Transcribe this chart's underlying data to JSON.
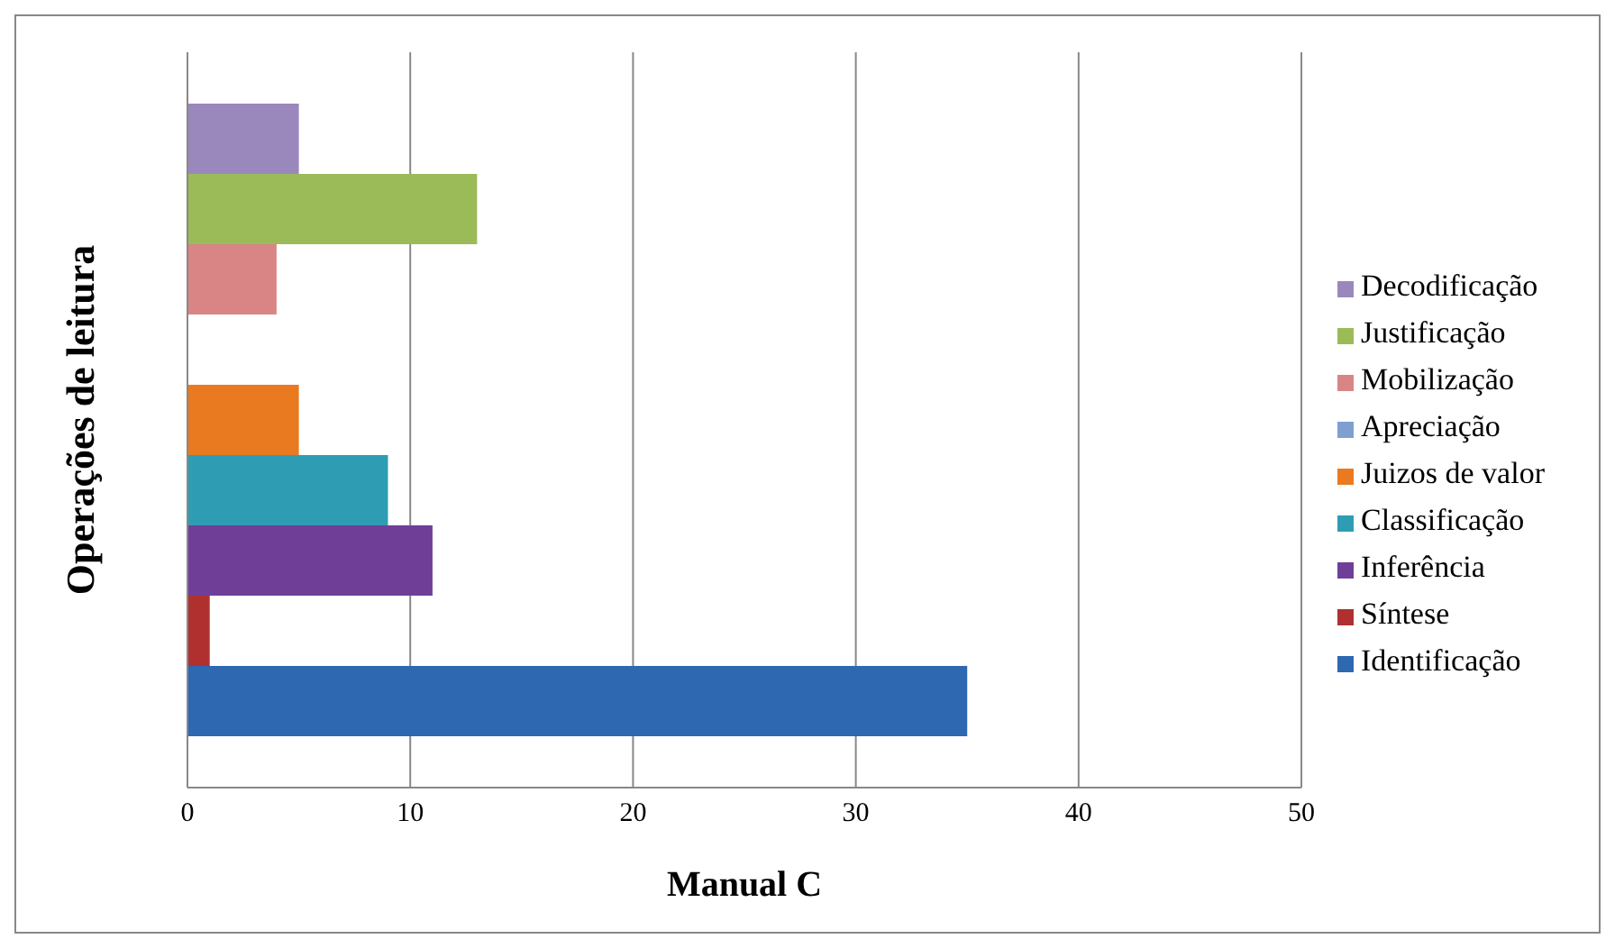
{
  "chart_data": {
    "type": "bar",
    "orientation": "horizontal",
    "xlabel": "Manual C",
    "ylabel": "Operações de leitura",
    "categories": [
      null
    ],
    "series": [
      {
        "name": "Decodificação",
        "color": "#9a88bd",
        "values": [
          5
        ]
      },
      {
        "name": "Justificação",
        "color": "#9bbb59",
        "values": [
          13
        ]
      },
      {
        "name": "Mobilização",
        "color": "#d98585",
        "values": [
          4
        ]
      },
      {
        "name": "Apreciação",
        "color": "#7f9fd3",
        "values": [
          0
        ]
      },
      {
        "name": "Juizos de valor",
        "color": "#ea7a1f",
        "values": [
          5
        ]
      },
      {
        "name": "Classificação",
        "color": "#2e9db3",
        "values": [
          9
        ]
      },
      {
        "name": "Inferência",
        "color": "#6f3f98",
        "values": [
          11
        ]
      },
      {
        "name": "Síntese",
        "color": "#b03030",
        "values": [
          1
        ]
      },
      {
        "name": "Identificação",
        "color": "#2d68b0",
        "values": [
          35
        ]
      }
    ],
    "xlim": [
      0,
      50
    ],
    "xticks": [
      0,
      10,
      20,
      30,
      40,
      50
    ],
    "grid": "x",
    "legend": "right"
  }
}
